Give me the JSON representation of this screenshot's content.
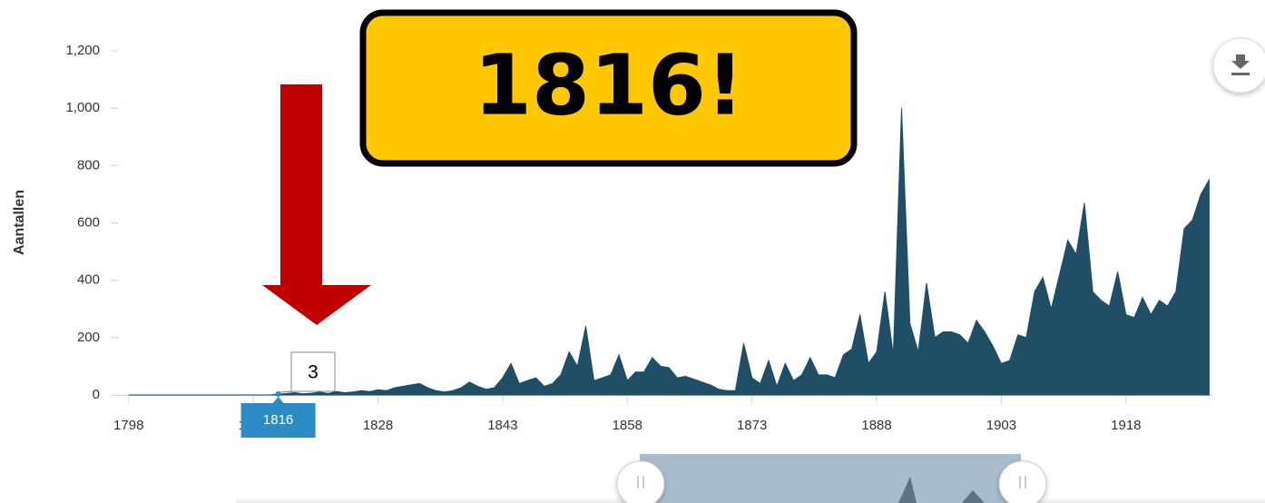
{
  "chart_data": {
    "type": "area",
    "y_axis_label": "Aantallen",
    "annotation": "1816!",
    "highlight_index": 18,
    "color": "#1f4e66",
    "x": [
      1798,
      1799,
      1800,
      1801,
      1802,
      1803,
      1804,
      1805,
      1806,
      1807,
      1808,
      1809,
      1810,
      1811,
      1812,
      1813,
      1814,
      1815,
      1816,
      1817,
      1818,
      1819,
      1820,
      1821,
      1822,
      1823,
      1824,
      1825,
      1826,
      1827,
      1828,
      1829,
      1830,
      1831,
      1832,
      1833,
      1834,
      1835,
      1836,
      1837,
      1838,
      1839,
      1840,
      1841,
      1842,
      1843,
      1844,
      1845,
      1846,
      1847,
      1848,
      1849,
      1850,
      1851,
      1852,
      1853,
      1854,
      1855,
      1856,
      1857,
      1858,
      1859,
      1860,
      1861,
      1862,
      1863,
      1864,
      1865,
      1866,
      1867,
      1868,
      1869,
      1870,
      1871,
      1872,
      1873,
      1874,
      1875,
      1876,
      1877,
      1878,
      1879,
      1880,
      1881,
      1882,
      1883,
      1884,
      1885,
      1886,
      1887,
      1888,
      1889,
      1890,
      1891,
      1892,
      1893,
      1894,
      1895,
      1896,
      1897,
      1898,
      1899,
      1900,
      1901,
      1902,
      1903,
      1904,
      1905,
      1906,
      1907,
      1908,
      1909,
      1910,
      1911,
      1912,
      1913,
      1914,
      1915,
      1916,
      1917,
      1918,
      1919,
      1920,
      1921,
      1922,
      1923,
      1924,
      1925,
      1926,
      1927,
      1928
    ],
    "values": [
      0,
      0,
      0,
      0,
      0,
      0,
      0,
      0,
      0,
      0,
      0,
      0,
      0,
      0,
      0,
      0,
      0,
      0,
      3,
      5,
      8,
      4,
      6,
      10,
      5,
      12,
      8,
      10,
      15,
      12,
      18,
      15,
      25,
      30,
      35,
      40,
      25,
      15,
      10,
      15,
      25,
      45,
      30,
      20,
      25,
      60,
      110,
      40,
      50,
      60,
      30,
      40,
      70,
      150,
      100,
      240,
      50,
      60,
      70,
      140,
      50,
      80,
      80,
      130,
      100,
      95,
      60,
      65,
      55,
      45,
      35,
      20,
      15,
      15,
      180,
      60,
      40,
      120,
      30,
      110,
      50,
      70,
      130,
      70,
      70,
      60,
      140,
      160,
      280,
      110,
      150,
      360,
      140,
      1000,
      250,
      150,
      390,
      200,
      220,
      220,
      210,
      180,
      260,
      220,
      170,
      110,
      120,
      210,
      200,
      360,
      410,
      300,
      420,
      540,
      490,
      670,
      360,
      330,
      310,
      430,
      280,
      270,
      340,
      280,
      330,
      310,
      360,
      580,
      610,
      700,
      750
    ],
    "xlim": [
      1796.5,
      1928.5
    ],
    "xticks": [
      1798,
      1813,
      1828,
      1843,
      1858,
      1873,
      1888,
      1903,
      1918
    ],
    "ylim": [
      0,
      1200
    ],
    "yticks": [
      0,
      200,
      400,
      600,
      800,
      {
        "value": 1000,
        "label": "1,000"
      },
      {
        "value": 1200,
        "label": "1,200"
      }
    ],
    "grid": false
  }
}
